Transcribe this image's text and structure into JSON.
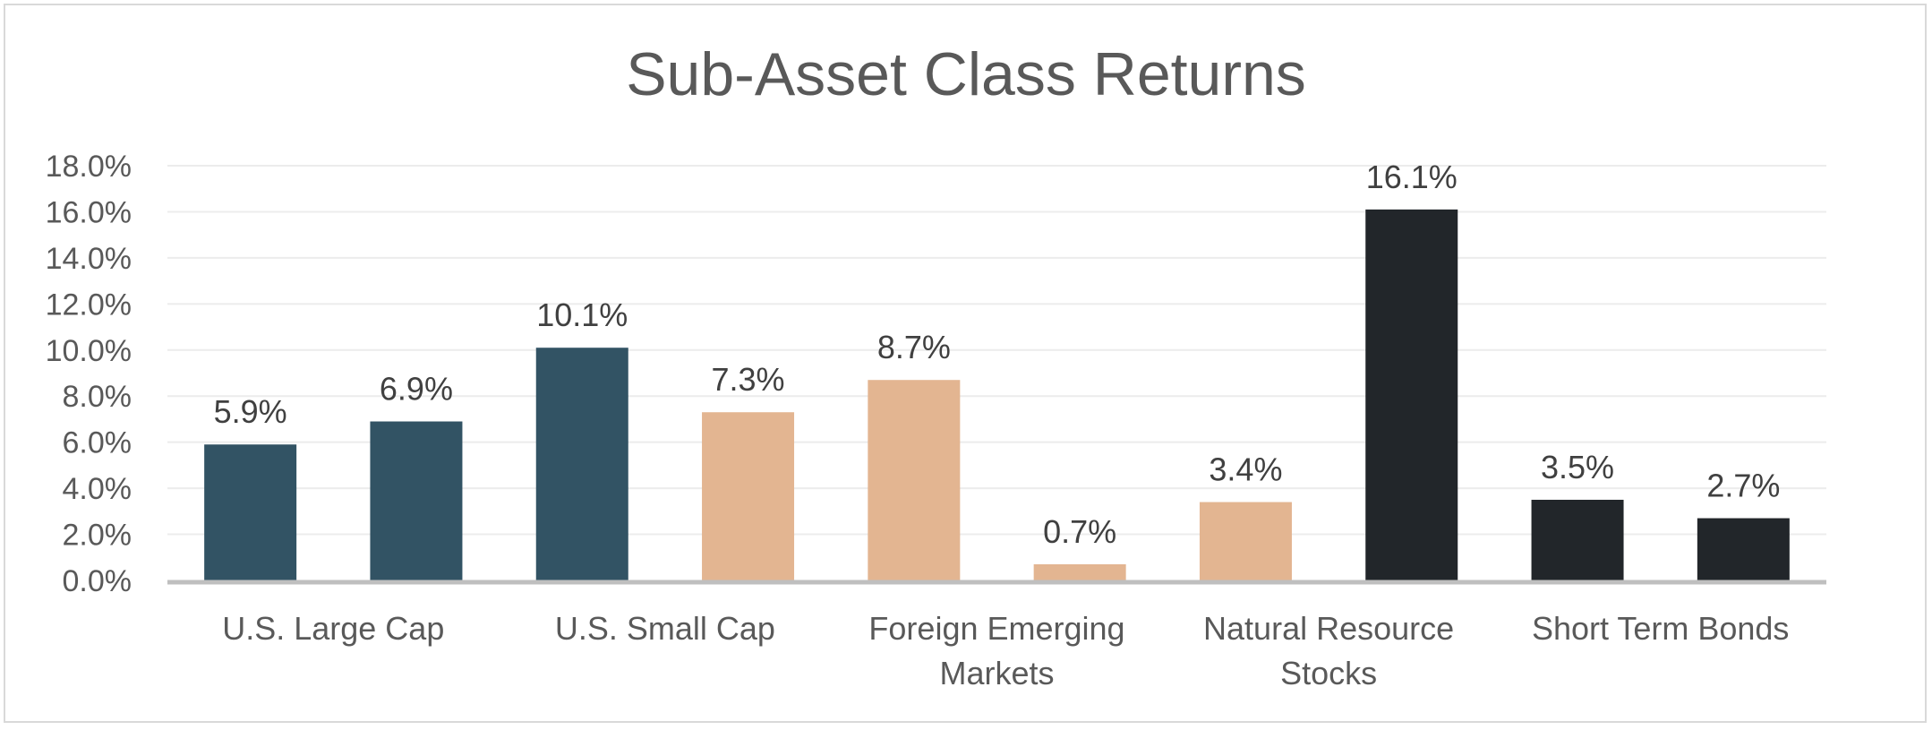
{
  "chart_data": {
    "type": "bar",
    "title": "Sub-Asset Class Returns",
    "ylim": [
      0,
      18
    ],
    "ytick_step": 2,
    "ytick_labels": [
      "0.0%",
      "2.0%",
      "4.0%",
      "6.0%",
      "8.0%",
      "10.0%",
      "12.0%",
      "14.0%",
      "16.0%",
      "18.0%"
    ],
    "grid": true,
    "values": [
      5.9,
      6.9,
      10.1,
      7.3,
      8.7,
      0.7,
      3.4,
      16.1,
      3.5,
      2.7
    ],
    "data_labels": [
      "5.9%",
      "6.9%",
      "10.1%",
      "7.3%",
      "8.7%",
      "0.7%",
      "3.4%",
      "16.1%",
      "3.5%",
      "2.7%"
    ],
    "bar_colors": [
      "#325364",
      "#325364",
      "#325364",
      "#e3b591",
      "#e3b591",
      "#e3b591",
      "#e3b591",
      "#22262a",
      "#22262a",
      "#22262a"
    ],
    "category_labels": [
      {
        "bar": 0,
        "lines": [
          "U.S. Large Cap"
        ]
      },
      {
        "bar": 2,
        "lines": [
          "U.S. Small Cap"
        ]
      },
      {
        "bar": 4,
        "lines": [
          "Foreign Emerging",
          "Markets"
        ]
      },
      {
        "bar": 6,
        "lines": [
          "Natural Resource",
          "Stocks"
        ]
      },
      {
        "bar": 8,
        "lines": [
          "Short Term Bonds"
        ]
      }
    ]
  }
}
